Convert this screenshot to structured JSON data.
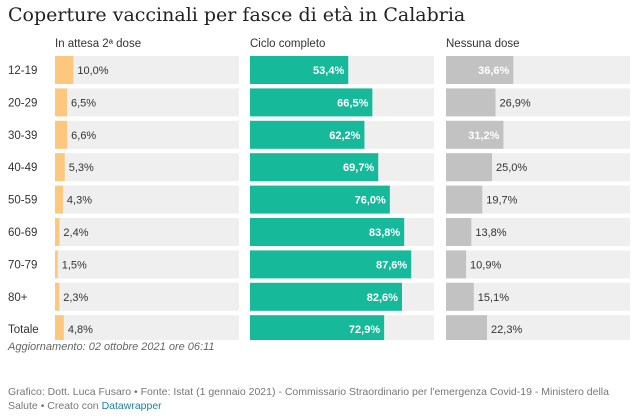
{
  "title": "Coperture vaccinali per fasce di età in Calabria",
  "update_note": "Aggiornamento: 02 ottobre 2021 ore 06:11",
  "source_text": "Grafico: Dott. Luca Fusaro • Fonte: Istat (1 gennaio 2021) - Commissario Straordinario per l'emergenza Covid-19 - Ministero della Salute • Creato con ",
  "source_link": "Datawrapper",
  "colors": {
    "attesa": "#fdc77d",
    "completo": "#17b99b",
    "nessuna": "#c2c2c2",
    "background": "#efefef"
  },
  "chart_data": {
    "type": "bar",
    "categories": [
      "12-19",
      "20-29",
      "30-39",
      "40-49",
      "50-59",
      "60-69",
      "70-79",
      "80+",
      "Totale"
    ],
    "series": [
      {
        "name": "In attesa 2ª dose",
        "values": [
          10.0,
          6.5,
          6.6,
          5.3,
          4.3,
          2.4,
          1.5,
          2.3,
          4.8
        ],
        "labels": [
          "10,0%",
          "6,5%",
          "6,6%",
          "5,3%",
          "4,3%",
          "2,4%",
          "1,5%",
          "2,3%",
          "4,8%"
        ]
      },
      {
        "name": "Ciclo completo",
        "values": [
          53.4,
          66.5,
          62.2,
          69.7,
          76.0,
          83.8,
          87.6,
          82.6,
          72.9
        ],
        "labels": [
          "53,4%",
          "66,5%",
          "62,2%",
          "69,7%",
          "76,0%",
          "83,8%",
          "87,6%",
          "82,6%",
          "72,9%"
        ]
      },
      {
        "name": "Nessuna dose",
        "values": [
          36.6,
          26.9,
          31.2,
          25.0,
          19.7,
          13.8,
          10.9,
          15.1,
          22.3
        ],
        "labels": [
          "36,6%",
          "26,9%",
          "31,2%",
          "25,0%",
          "19,7%",
          "13,8%",
          "10,9%",
          "15,1%",
          "22,3%"
        ]
      }
    ],
    "xlim": [
      0,
      100
    ]
  }
}
